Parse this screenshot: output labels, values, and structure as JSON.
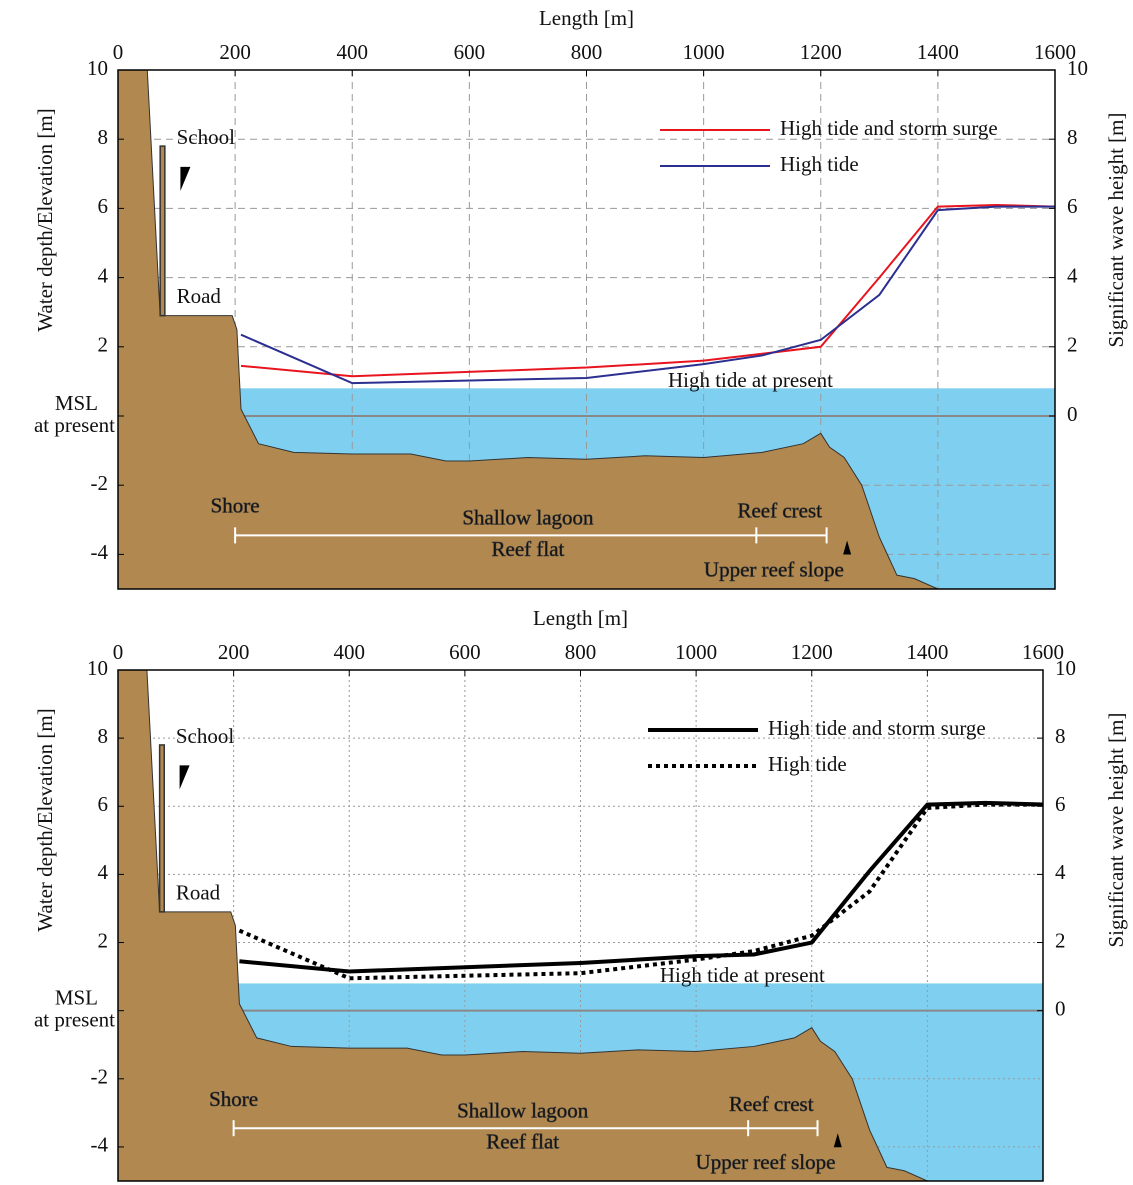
{
  "chart_data": [
    {
      "type": "line",
      "x_label": "Length [m]",
      "y_label": "Water depth/Elevation [m]",
      "y2_label": "Significant wave height [m]",
      "xlim": [
        0,
        1600
      ],
      "xticks": [
        0,
        200,
        400,
        600,
        800,
        1000,
        1200,
        1400,
        1600
      ],
      "ylim": [
        -5,
        10
      ],
      "yticks": [
        -4,
        -2,
        {
          "value": 0,
          "label": "MSL at present"
        },
        2,
        4,
        6,
        8,
        10
      ],
      "y2lim": [
        -5,
        10
      ],
      "y2ticks": [
        0,
        2,
        4,
        6,
        8,
        10
      ],
      "grid": true,
      "grid_style": "dashed",
      "legend": "upper right",
      "series": [
        {
          "name": "High tide and storm surge",
          "color": "#e8141e",
          "dash": "solid",
          "axis": "y2",
          "x": [
            210,
            400,
            800,
            1000,
            1100,
            1200,
            1300,
            1400,
            1500,
            1600
          ],
          "values": [
            1.45,
            1.15,
            1.4,
            1.6,
            1.8,
            2.0,
            4.0,
            6.05,
            6.1,
            6.05
          ]
        },
        {
          "name": "High tide",
          "color": "#2b2f8f",
          "dash": "solid",
          "axis": "y2",
          "x": [
            210,
            400,
            800,
            1000,
            1100,
            1200,
            1300,
            1400,
            1500,
            1600
          ],
          "values": [
            2.35,
            0.95,
            1.1,
            1.5,
            1.75,
            2.2,
            3.5,
            5.95,
            6.05,
            6.05
          ]
        }
      ],
      "terrain": {
        "color": "#b08850",
        "x": [
          0,
          50,
          72,
          195,
          203,
          210,
          240,
          300,
          400,
          500,
          560,
          600,
          700,
          800,
          900,
          1000,
          1100,
          1170,
          1200,
          1215,
          1240,
          1270,
          1300,
          1330,
          1360,
          1400
        ],
        "y": [
          10,
          10,
          2.9,
          2.9,
          2.5,
          0.2,
          -0.8,
          -1.05,
          -1.1,
          -1.1,
          -1.3,
          -1.3,
          -1.2,
          -1.25,
          -1.15,
          -1.2,
          -1.05,
          -0.8,
          -0.5,
          -0.9,
          -1.2,
          -2.0,
          -3.5,
          -4.6,
          -4.7,
          -5
        ]
      },
      "water": {
        "color": "#7fd0f0",
        "level": 0.8,
        "label": "High tide at present"
      },
      "annotations": [
        "School",
        "Road",
        "Shore",
        "Shallow lagoon",
        "Reef flat",
        "Reef crest",
        "Upper reef slope"
      ]
    },
    {
      "type": "line",
      "x_label": "Length [m]",
      "y_label": "Water depth/Elevation [m]",
      "y2_label": "Significant wave height [m]",
      "xlim": [
        0,
        1600
      ],
      "xticks": [
        0,
        200,
        400,
        600,
        800,
        1000,
        1200,
        1400,
        1600
      ],
      "ylim": [
        -5,
        10
      ],
      "yticks": [
        -4,
        -2,
        {
          "value": 0,
          "label": "MSL at present"
        },
        2,
        4,
        6,
        8,
        10
      ],
      "y2lim": [
        -5,
        10
      ],
      "y2ticks": [
        0,
        2,
        4,
        6,
        8,
        10
      ],
      "grid": true,
      "grid_style": "dotted",
      "legend": "upper right",
      "series": [
        {
          "name": "High tide and storm surge",
          "color": "#000000",
          "dash": "solid",
          "axis": "y2",
          "x": [
            210,
            400,
            800,
            1000,
            1100,
            1200,
            1300,
            1400,
            1500,
            1600
          ],
          "values": [
            1.45,
            1.15,
            1.4,
            1.6,
            1.65,
            2.0,
            4.1,
            6.05,
            6.1,
            6.05
          ]
        },
        {
          "name": "High tide",
          "color": "#000000",
          "dash": "dotted",
          "axis": "y2",
          "x": [
            210,
            400,
            800,
            1000,
            1100,
            1200,
            1300,
            1400,
            1500,
            1600
          ],
          "values": [
            2.35,
            0.95,
            1.1,
            1.5,
            1.75,
            2.2,
            3.5,
            5.95,
            6.05,
            6.05
          ]
        }
      ],
      "terrain": {
        "color": "#b08850",
        "x": [
          0,
          50,
          72,
          195,
          203,
          210,
          240,
          300,
          400,
          500,
          560,
          600,
          700,
          800,
          900,
          1000,
          1100,
          1170,
          1200,
          1215,
          1240,
          1270,
          1300,
          1330,
          1360,
          1400
        ],
        "y": [
          10,
          10,
          2.9,
          2.9,
          2.5,
          0.2,
          -0.8,
          -1.05,
          -1.1,
          -1.1,
          -1.3,
          -1.3,
          -1.2,
          -1.25,
          -1.15,
          -1.2,
          -1.05,
          -0.8,
          -0.5,
          -0.9,
          -1.2,
          -2.0,
          -3.5,
          -4.6,
          -4.7,
          -5
        ]
      },
      "water": {
        "color": "#7fd0f0",
        "level": 0.8,
        "label": "High tide at present"
      },
      "annotations": [
        "School",
        "Road",
        "Shore",
        "Shallow lagoon",
        "Reef flat",
        "Reef crest",
        "Upper reef slope"
      ]
    }
  ]
}
